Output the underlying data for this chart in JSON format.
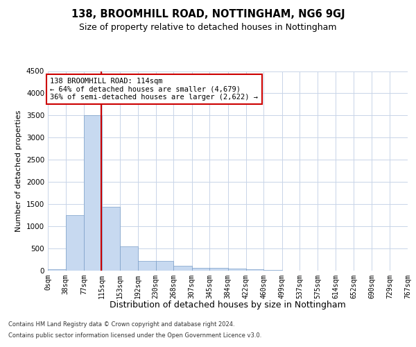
{
  "title1": "138, BROOMHILL ROAD, NOTTINGHAM, NG6 9GJ",
  "title2": "Size of property relative to detached houses in Nottingham",
  "xlabel": "Distribution of detached houses by size in Nottingham",
  "ylabel": "Number of detached properties",
  "footer1": "Contains HM Land Registry data © Crown copyright and database right 2024.",
  "footer2": "Contains public sector information licensed under the Open Government Licence v3.0.",
  "annotation_line1": "138 BROOMHILL ROAD: 114sqm",
  "annotation_line2": "← 64% of detached houses are smaller (4,679)",
  "annotation_line3": "36% of semi-detached houses are larger (2,622) →",
  "property_size": 114,
  "bin_edges": [
    0,
    38,
    77,
    115,
    153,
    192,
    230,
    268,
    307,
    345,
    384,
    422,
    460,
    499,
    537,
    575,
    614,
    652,
    690,
    729,
    767
  ],
  "bar_heights": [
    30,
    1260,
    3510,
    1440,
    545,
    215,
    215,
    105,
    70,
    55,
    40,
    25,
    15,
    5,
    0,
    5,
    0,
    0,
    0,
    0
  ],
  "bar_color": "#c7d9f0",
  "bar_edge_color": "#7a9ec8",
  "vline_color": "#cc0000",
  "annotation_box_edge": "#cc0000",
  "ylim": [
    0,
    4500
  ],
  "yticks": [
    0,
    500,
    1000,
    1500,
    2000,
    2500,
    3000,
    3500,
    4000,
    4500
  ],
  "bg_color": "#ffffff",
  "grid_color": "#c8d4e8",
  "title1_fontsize": 10.5,
  "title2_fontsize": 9,
  "tick_labelsize": 7,
  "ylabel_fontsize": 8,
  "xlabel_fontsize": 9,
  "footer_fontsize": 6,
  "annot_fontsize": 7.5
}
